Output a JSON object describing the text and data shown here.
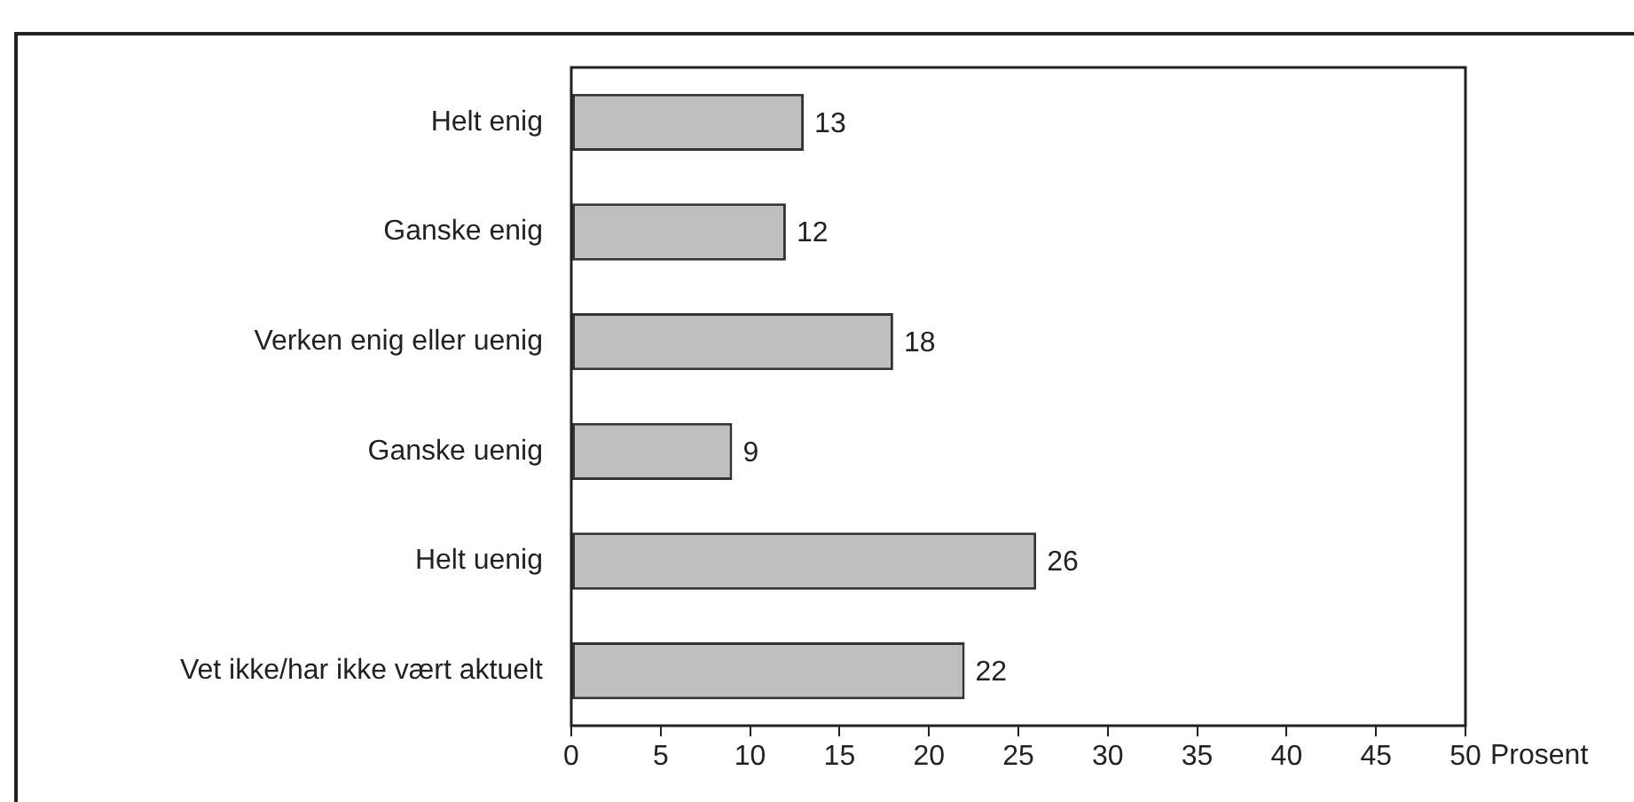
{
  "chart_data": {
    "type": "bar",
    "orientation": "horizontal",
    "xlabel": "Prosent",
    "categories": [
      "Helt enig",
      "Ganske enig",
      "Verken enig eller uenig",
      "Ganske uenig",
      "Helt uenig",
      "Vet ikke/har ikke vært aktuelt"
    ],
    "values": [
      13,
      12,
      18,
      9,
      26,
      22
    ],
    "color": "#bfbfbf",
    "xlim": [
      0,
      50
    ],
    "xticks": [
      0,
      5,
      10,
      15,
      20,
      25,
      30,
      35,
      40,
      45,
      50
    ],
    "grid": false,
    "legend": false,
    "data_labels": true
  }
}
